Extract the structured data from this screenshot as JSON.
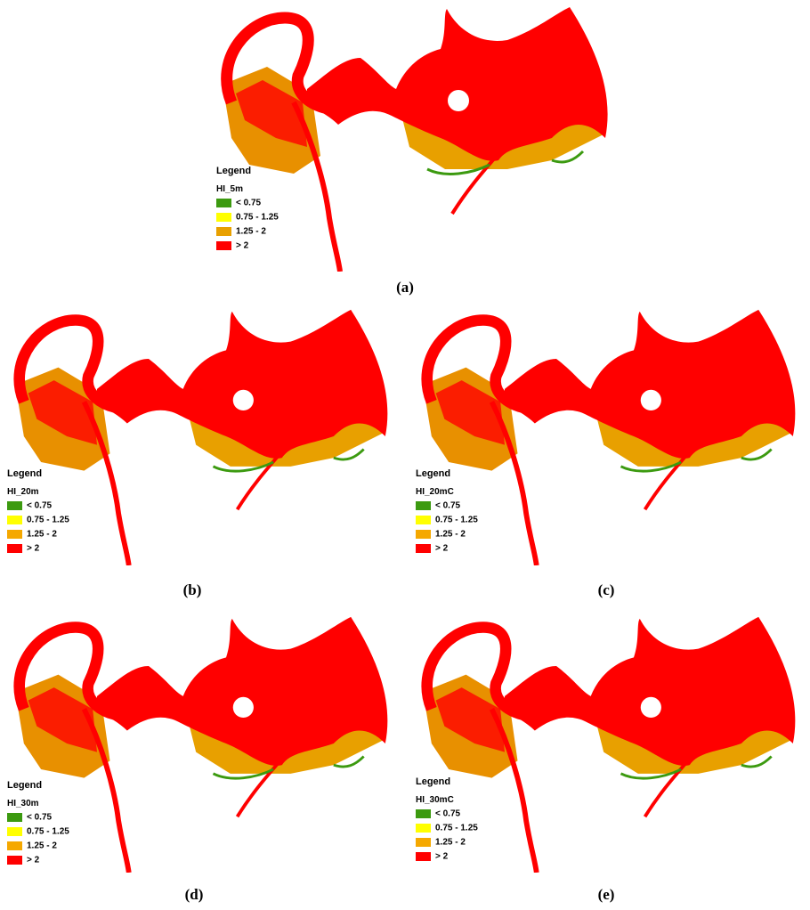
{
  "panels": [
    {
      "caption": "(a)",
      "legend": {
        "title": "Legend",
        "layer": "HI_5m",
        "items": [
          {
            "label": "< 0.75",
            "color": "#3c9a10"
          },
          {
            "label": "0.75 - 1.25",
            "color": "#ffff00"
          },
          {
            "label": "1.25 - 2",
            "color": "#e8a000"
          },
          {
            "label": "> 2",
            "color": "#ff0000"
          }
        ]
      }
    },
    {
      "caption": "(b)",
      "legend": {
        "title": "Legend",
        "layer": "HI_20m",
        "items": [
          {
            "label": "< 0.75",
            "color": "#3c9a10"
          },
          {
            "label": "0.75 - 1.25",
            "color": "#ffff00"
          },
          {
            "label": "1.25 - 2",
            "color": "#f5a800"
          },
          {
            "label": "> 2",
            "color": "#ff0000"
          }
        ]
      }
    },
    {
      "caption": "(c)",
      "legend": {
        "title": "Legend",
        "layer": "HI_20mC",
        "items": [
          {
            "label": "< 0.75",
            "color": "#3c9a10"
          },
          {
            "label": "0.75 - 1.25",
            "color": "#ffff00"
          },
          {
            "label": "1.25 - 2",
            "color": "#f5a800"
          },
          {
            "label": "> 2",
            "color": "#ff0000"
          }
        ]
      }
    },
    {
      "caption": "(d)",
      "legend": {
        "title": "Legend",
        "layer": "HI_30m",
        "items": [
          {
            "label": "< 0.75",
            "color": "#3c9a10"
          },
          {
            "label": "0.75 - 1.25",
            "color": "#ffff00"
          },
          {
            "label": "1.25 - 2",
            "color": "#f5a800"
          },
          {
            "label": "> 2",
            "color": "#ff0000"
          }
        ]
      }
    },
    {
      "caption": "(e)",
      "legend": {
        "title": "Legend",
        "layer": "HI_30mC",
        "items": [
          {
            "label": "< 0.75",
            "color": "#3c9a10"
          },
          {
            "label": "0.75 - 1.25",
            "color": "#ffff00"
          },
          {
            "label": "1.25 - 2",
            "color": "#f5a800"
          },
          {
            "label": "> 2",
            "color": "#ff0000"
          }
        ]
      }
    }
  ]
}
